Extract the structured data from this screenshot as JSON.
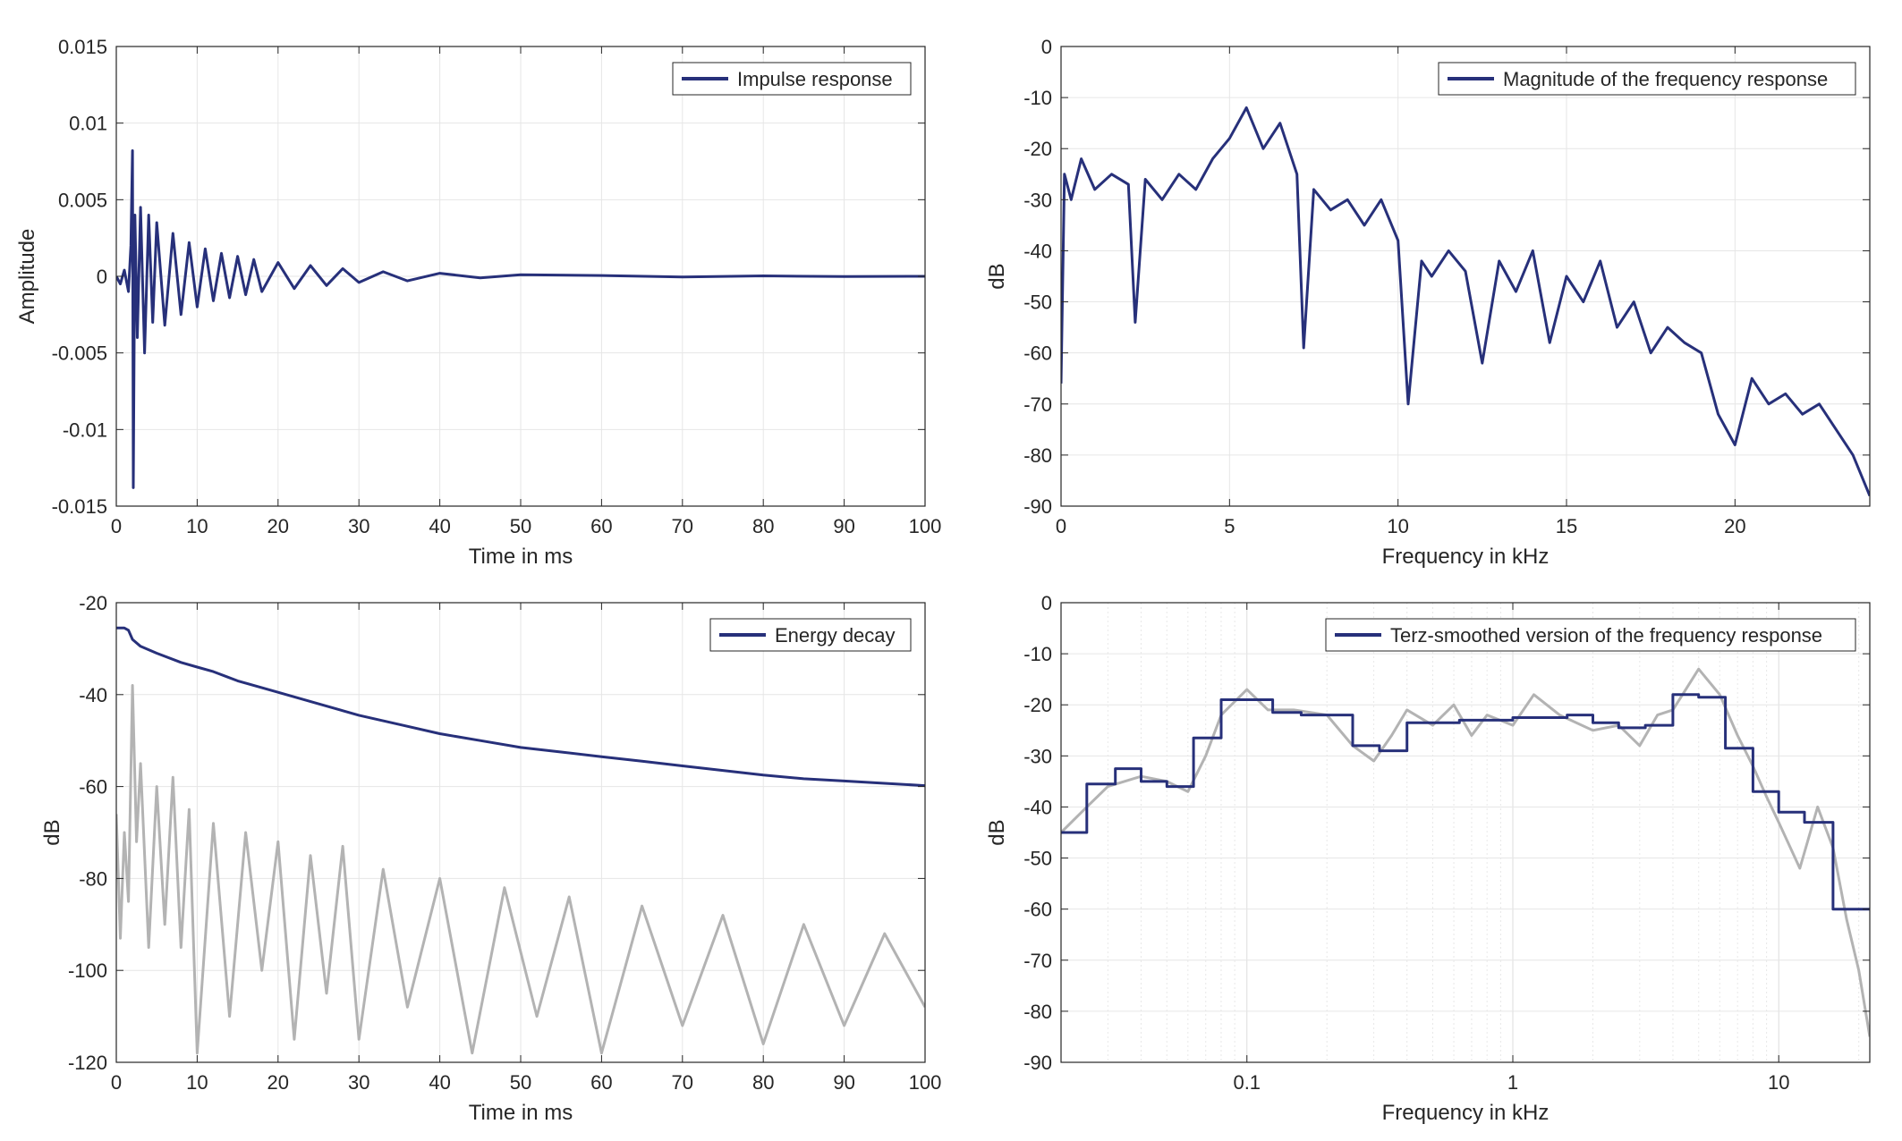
{
  "colors": {
    "series": "#27307A",
    "reference": "#B3B3B3",
    "axis": "#262626",
    "grid": "#E6E6E6"
  },
  "chart_data": [
    {
      "id": "impulse",
      "type": "line",
      "xlabel": "Time in ms",
      "ylabel": "Amplitude",
      "xlim": [
        0,
        100
      ],
      "ylim": [
        -0.015,
        0.015
      ],
      "xscale": "linear",
      "grid": true,
      "legend_position": "top-right",
      "x_ticks": [
        {
          "v": 0,
          "label": "0"
        },
        {
          "v": 10,
          "label": "10"
        },
        {
          "v": 20,
          "label": "20"
        },
        {
          "v": 30,
          "label": "30"
        },
        {
          "v": 40,
          "label": "40"
        },
        {
          "v": 50,
          "label": "50"
        },
        {
          "v": 60,
          "label": "60"
        },
        {
          "v": 70,
          "label": "70"
        },
        {
          "v": 80,
          "label": "80"
        },
        {
          "v": 90,
          "label": "90"
        },
        {
          "v": 100,
          "label": "100"
        }
      ],
      "y_ticks": [
        {
          "v": 0.015,
          "label": "0.015"
        },
        {
          "v": 0.01,
          "label": "0.01"
        },
        {
          "v": 0.005,
          "label": "0.005"
        },
        {
          "v": 0,
          "label": "0"
        },
        {
          "v": -0.005,
          "label": "-0.005"
        },
        {
          "v": -0.01,
          "label": "-0.01"
        },
        {
          "v": -0.015,
          "label": "-0.015"
        }
      ],
      "series": [
        {
          "name": "Impulse response",
          "style": "primary",
          "x": [
            0,
            0.5,
            1,
            1.5,
            1.8,
            2,
            2.1,
            2.3,
            2.6,
            3,
            3.5,
            4,
            4.5,
            5,
            6,
            7,
            8,
            9,
            10,
            11,
            12,
            13,
            14,
            15,
            16,
            17,
            18,
            20,
            22,
            24,
            26,
            28,
            30,
            33,
            36,
            40,
            45,
            50,
            60,
            70,
            80,
            90,
            100
          ],
          "y": [
            0,
            -0.0005,
            0.0004,
            -0.001,
            0.002,
            0.0082,
            -0.0138,
            0.004,
            -0.004,
            0.0045,
            -0.005,
            0.004,
            -0.003,
            0.0035,
            -0.0032,
            0.0028,
            -0.0025,
            0.0022,
            -0.002,
            0.0018,
            -0.0016,
            0.0015,
            -0.0014,
            0.0013,
            -0.0012,
            0.0011,
            -0.001,
            0.0009,
            -0.0008,
            0.0007,
            -0.0006,
            0.0005,
            -0.0004,
            0.0003,
            -0.0003,
            0.0002,
            -0.0001,
            0.0001,
            5e-05,
            -4e-05,
            3e-05,
            -2e-05,
            0
          ]
        }
      ]
    },
    {
      "id": "magnitude",
      "type": "line",
      "xlabel": "Frequency in kHz",
      "ylabel": "dB",
      "xlim": [
        0,
        24
      ],
      "ylim": [
        -90,
        0
      ],
      "xscale": "linear",
      "grid": true,
      "legend_position": "top-right",
      "x_ticks": [
        {
          "v": 0,
          "label": "0"
        },
        {
          "v": 5,
          "label": "5"
        },
        {
          "v": 10,
          "label": "10"
        },
        {
          "v": 15,
          "label": "15"
        },
        {
          "v": 20,
          "label": "20"
        }
      ],
      "y_ticks": [
        {
          "v": 0,
          "label": "0"
        },
        {
          "v": -10,
          "label": "-10"
        },
        {
          "v": -20,
          "label": "-20"
        },
        {
          "v": -30,
          "label": "-30"
        },
        {
          "v": -40,
          "label": "-40"
        },
        {
          "v": -50,
          "label": "-50"
        },
        {
          "v": -60,
          "label": "-60"
        },
        {
          "v": -70,
          "label": "-70"
        },
        {
          "v": -80,
          "label": "-80"
        },
        {
          "v": -90,
          "label": "-90"
        }
      ],
      "series": [
        {
          "name": "Magnitude of the frequency response",
          "style": "primary",
          "x": [
            0,
            0.1,
            0.3,
            0.6,
            1,
            1.5,
            2,
            2.2,
            2.5,
            3,
            3.5,
            4,
            4.5,
            5,
            5.5,
            6,
            6.5,
            7,
            7.2,
            7.5,
            8,
            8.5,
            9,
            9.5,
            10,
            10.3,
            10.7,
            11,
            11.5,
            12,
            12.5,
            13,
            13.5,
            14,
            14.5,
            15,
            15.5,
            16,
            16.5,
            17,
            17.5,
            18,
            18.5,
            19,
            19.5,
            20,
            20.5,
            21,
            21.5,
            22,
            22.5,
            23,
            23.5,
            24
          ],
          "y": [
            -66,
            -25,
            -30,
            -22,
            -28,
            -25,
            -27,
            -54,
            -26,
            -30,
            -25,
            -28,
            -22,
            -18,
            -12,
            -20,
            -15,
            -25,
            -59,
            -28,
            -32,
            -30,
            -35,
            -30,
            -38,
            -70,
            -42,
            -45,
            -40,
            -44,
            -62,
            -42,
            -48,
            -40,
            -58,
            -45,
            -50,
            -42,
            -55,
            -50,
            -60,
            -55,
            -58,
            -60,
            -72,
            -78,
            -65,
            -70,
            -68,
            -72,
            -70,
            -75,
            -80,
            -88
          ]
        }
      ]
    },
    {
      "id": "energy",
      "type": "line",
      "xlabel": "Time in ms",
      "ylabel": "dB",
      "xlim": [
        0,
        100
      ],
      "ylim": [
        -120,
        -20
      ],
      "xscale": "linear",
      "grid": true,
      "legend_position": "top-right",
      "x_ticks": [
        {
          "v": 0,
          "label": "0"
        },
        {
          "v": 10,
          "label": "10"
        },
        {
          "v": 20,
          "label": "20"
        },
        {
          "v": 30,
          "label": "30"
        },
        {
          "v": 40,
          "label": "40"
        },
        {
          "v": 50,
          "label": "50"
        },
        {
          "v": 60,
          "label": "60"
        },
        {
          "v": 70,
          "label": "70"
        },
        {
          "v": 80,
          "label": "80"
        },
        {
          "v": 90,
          "label": "90"
        },
        {
          "v": 100,
          "label": "100"
        }
      ],
      "y_ticks": [
        {
          "v": -20,
          "label": "-20"
        },
        {
          "v": -40,
          "label": "-40"
        },
        {
          "v": -60,
          "label": "-60"
        },
        {
          "v": -80,
          "label": "-80"
        },
        {
          "v": -100,
          "label": "-100"
        },
        {
          "v": -120,
          "label": "-120"
        }
      ],
      "series": [
        {
          "name": "",
          "style": "reference",
          "x": [
            0,
            0.5,
            1,
            1.5,
            2,
            2.5,
            3,
            4,
            5,
            6,
            7,
            8,
            9,
            10,
            12,
            14,
            16,
            18,
            20,
            22,
            24,
            26,
            28,
            30,
            33,
            36,
            40,
            44,
            48,
            52,
            56,
            60,
            65,
            70,
            75,
            80,
            85,
            90,
            95,
            100
          ],
          "y": [
            -66,
            -93,
            -70,
            -85,
            -38,
            -72,
            -55,
            -95,
            -60,
            -90,
            -58,
            -95,
            -65,
            -118,
            -68,
            -110,
            -70,
            -100,
            -72,
            -115,
            -75,
            -105,
            -73,
            -115,
            -78,
            -108,
            -80,
            -118,
            -82,
            -110,
            -84,
            -118,
            -86,
            -112,
            -88,
            -116,
            -90,
            -112,
            -92,
            -108
          ]
        },
        {
          "name": "Energy decay",
          "style": "primary",
          "x": [
            0,
            1,
            1.5,
            2,
            3,
            5,
            8,
            10,
            12,
            15,
            18,
            20,
            25,
            30,
            35,
            40,
            45,
            50,
            55,
            60,
            65,
            70,
            75,
            80,
            85,
            90,
            95,
            100
          ],
          "y": [
            -25.5,
            -25.5,
            -26,
            -28,
            -29.5,
            -31,
            -33,
            -34,
            -35,
            -37,
            -38.5,
            -39.5,
            -42,
            -44.5,
            -46.5,
            -48.5,
            -50,
            -51.5,
            -52.5,
            -53.5,
            -54.5,
            -55.5,
            -56.5,
            -57.5,
            -58.3,
            -58.8,
            -59.3,
            -59.8
          ]
        }
      ]
    },
    {
      "id": "terz",
      "type": "line",
      "xlabel": "Frequency in kHz",
      "ylabel": "dB",
      "xlim": [
        0.02,
        22
      ],
      "ylim": [
        -90,
        0
      ],
      "xscale": "log",
      "grid": true,
      "legend_position": "top-right",
      "x_ticks": [
        {
          "v": 0.1,
          "label": "0.1"
        },
        {
          "v": 1,
          "label": "1"
        },
        {
          "v": 10,
          "label": "10"
        }
      ],
      "y_ticks": [
        {
          "v": 0,
          "label": "0"
        },
        {
          "v": -10,
          "label": "-10"
        },
        {
          "v": -20,
          "label": "-20"
        },
        {
          "v": -30,
          "label": "-30"
        },
        {
          "v": -40,
          "label": "-40"
        },
        {
          "v": -50,
          "label": "-50"
        },
        {
          "v": -60,
          "label": "-60"
        },
        {
          "v": -70,
          "label": "-70"
        },
        {
          "v": -80,
          "label": "-80"
        },
        {
          "v": -90,
          "label": "-90"
        }
      ],
      "series": [
        {
          "name": "",
          "style": "reference",
          "x": [
            0.02,
            0.025,
            0.03,
            0.04,
            0.05,
            0.06,
            0.07,
            0.08,
            0.1,
            0.12,
            0.15,
            0.2,
            0.25,
            0.3,
            0.35,
            0.4,
            0.5,
            0.6,
            0.7,
            0.8,
            1,
            1.2,
            1.5,
            2,
            2.5,
            3,
            3.5,
            4,
            5,
            6,
            7,
            8,
            9,
            10,
            12,
            14,
            16,
            18,
            20,
            22
          ],
          "y": [
            -45,
            -40,
            -36,
            -34,
            -35,
            -37,
            -30,
            -22,
            -17,
            -21,
            -21,
            -22,
            -28,
            -31,
            -26,
            -21,
            -24,
            -20,
            -26,
            -22,
            -24,
            -18,
            -22,
            -25,
            -24,
            -28,
            -22,
            -21,
            -13,
            -18,
            -26,
            -32,
            -38,
            -43,
            -52,
            -40,
            -48,
            -62,
            -72,
            -85
          ]
        },
        {
          "name": "Terz-smoothed version of the frequency response",
          "style": "primary",
          "x": [
            0.02,
            0.025,
            0.025,
            0.032,
            0.032,
            0.04,
            0.04,
            0.05,
            0.05,
            0.063,
            0.063,
            0.08,
            0.08,
            0.1,
            0.1,
            0.125,
            0.125,
            0.16,
            0.16,
            0.2,
            0.2,
            0.25,
            0.25,
            0.315,
            0.315,
            0.4,
            0.4,
            0.5,
            0.5,
            0.63,
            0.63,
            0.8,
            0.8,
            1,
            1,
            1.25,
            1.25,
            1.6,
            1.6,
            2,
            2,
            2.5,
            2.5,
            3.15,
            3.15,
            4,
            4,
            5,
            5,
            6.3,
            6.3,
            8,
            8,
            10,
            10,
            12.5,
            12.5,
            16,
            16,
            20,
            20,
            22
          ],
          "y": [
            -45,
            -45,
            -35.5,
            -35.5,
            -32.5,
            -32.5,
            -35,
            -35,
            -36,
            -36,
            -26.5,
            -26.5,
            -19,
            -19,
            -19,
            -19,
            -21.5,
            -21.5,
            -22,
            -22,
            -22,
            -22,
            -28,
            -28,
            -29,
            -29,
            -23.5,
            -23.5,
            -23.5,
            -23.5,
            -23,
            -23,
            -23,
            -23,
            -22.5,
            -22.5,
            -22.5,
            -22.5,
            -22,
            -22,
            -23.5,
            -23.5,
            -24.5,
            -24.5,
            -24,
            -24,
            -18,
            -18,
            -18.5,
            -18.5,
            -28.5,
            -28.5,
            -37,
            -37,
            -41,
            -41,
            -43,
            -43,
            -60,
            -60,
            -60,
            -60
          ]
        }
      ]
    }
  ]
}
